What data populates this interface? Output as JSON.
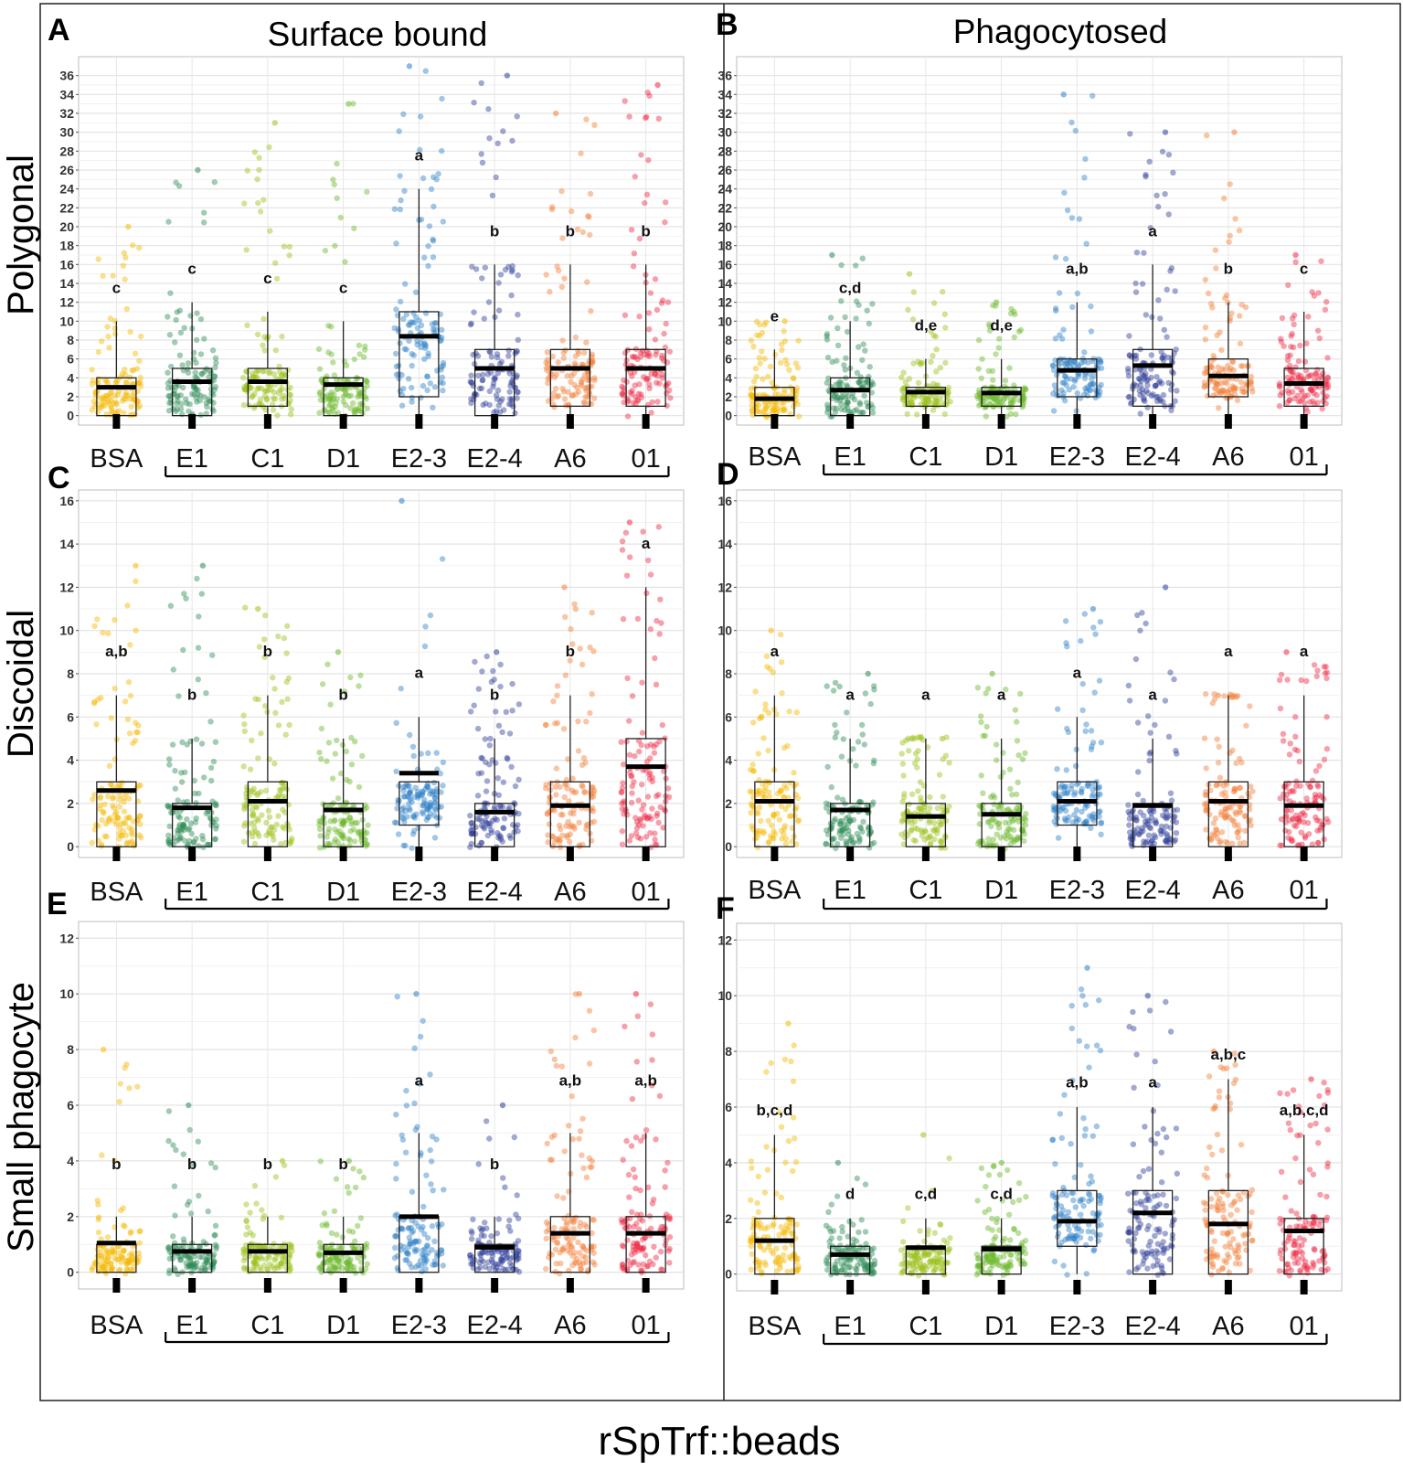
{
  "figure": {
    "col_titles": [
      "Surface bound",
      "Phagocytosed"
    ],
    "row_titles": [
      "Polygonal",
      "Discoidal",
      "Small phagocyte"
    ],
    "xlabel": "rSpTrf::beads"
  },
  "colors": {
    "BSA": "#f5b800",
    "E1": "#2e8b57",
    "C1": "#9cc21a",
    "D1": "#6ab82a",
    "E2-3": "#2f80c8",
    "E2-4": "#2e3f98",
    "A6": "#f57f38",
    "01": "#ee2a45"
  },
  "chart_data": [
    {
      "panel": "A",
      "type": "box",
      "title": "Surface bound",
      "row": "Polygonal",
      "categories": [
        "BSA",
        "E1",
        "C1",
        "D1",
        "E2-3",
        "E2-4",
        "A6",
        "01"
      ],
      "ylim": [
        -1,
        38
      ],
      "yticks": [
        0,
        2,
        4,
        6,
        8,
        10,
        12,
        14,
        16,
        18,
        20,
        22,
        24,
        26,
        28,
        30,
        32,
        34,
        36
      ],
      "q1": [
        0,
        0,
        1,
        0,
        2,
        0,
        1,
        1
      ],
      "median": [
        3,
        3.6,
        3.6,
        3.3,
        8.4,
        5,
        5,
        5
      ],
      "q3": [
        4,
        5,
        5,
        4,
        11,
        7,
        7,
        7
      ],
      "whisker_low": [
        0,
        0,
        0,
        0,
        0,
        0,
        0,
        0
      ],
      "whisker_high": [
        10,
        12,
        11,
        10,
        24,
        16,
        16,
        16
      ],
      "max_point": [
        20,
        26,
        31,
        33,
        37,
        36,
        32,
        35
      ],
      "significance": [
        "c",
        "c",
        "c",
        "c",
        "a",
        "b",
        "b",
        "b"
      ],
      "sig_y": [
        13,
        15,
        14,
        13,
        27,
        19,
        19,
        19
      ]
    },
    {
      "panel": "B",
      "type": "box",
      "title": "Phagocytosed",
      "row": "Polygonal",
      "categories": [
        "BSA",
        "E1",
        "C1",
        "D1",
        "E2-3",
        "E2-4",
        "A6",
        "01"
      ],
      "ylim": [
        -1,
        38
      ],
      "yticks": [
        0,
        2,
        4,
        6,
        8,
        10,
        12,
        14,
        16,
        18,
        20,
        22,
        24,
        26,
        28,
        30,
        32,
        34,
        36
      ],
      "q1": [
        0,
        0,
        1,
        1,
        2,
        1,
        2,
        1
      ],
      "median": [
        1.8,
        2.7,
        2.5,
        2.4,
        4.8,
        5.3,
        4.2,
        3.4
      ],
      "q3": [
        3,
        4,
        3,
        3,
        6,
        7,
        6,
        5
      ],
      "whisker_low": [
        0,
        0,
        0,
        0,
        0,
        0,
        0,
        0
      ],
      "whisker_high": [
        7,
        10,
        6,
        6,
        12,
        16,
        12,
        11
      ],
      "max_point": [
        10,
        17,
        15,
        12,
        34,
        30,
        30,
        17
      ],
      "significance": [
        "e",
        "c,d",
        "d,e",
        "d,e",
        "a,b",
        "a",
        "b",
        "c"
      ],
      "sig_y": [
        10,
        13,
        9,
        9,
        15,
        19,
        15,
        15
      ]
    },
    {
      "panel": "C",
      "type": "box",
      "row": "Discoidal",
      "categories": [
        "BSA",
        "E1",
        "C1",
        "D1",
        "E2-3",
        "E2-4",
        "A6",
        "01"
      ],
      "ylim": [
        -0.5,
        16.5
      ],
      "yticks": [
        0,
        2,
        4,
        6,
        8,
        10,
        12,
        14,
        16
      ],
      "q1": [
        0,
        0,
        0,
        0,
        1,
        0,
        0,
        0
      ],
      "median": [
        2.6,
        1.8,
        2.1,
        1.7,
        3.4,
        1.6,
        1.9,
        3.7
      ],
      "q3": [
        3,
        2,
        3,
        2,
        3,
        2,
        3,
        5
      ],
      "whisker_low": [
        0,
        0,
        0,
        0,
        0,
        0,
        0,
        0
      ],
      "whisker_high": [
        7,
        5,
        7,
        5,
        6,
        5,
        7,
        12
      ],
      "max_point": [
        13,
        13,
        11,
        9,
        16,
        9,
        12,
        15
      ],
      "significance": [
        "a,b",
        "b",
        "b",
        "b",
        "a",
        "b",
        "b",
        "a"
      ],
      "sig_y": [
        8.8,
        6.8,
        8.8,
        6.8,
        7.8,
        6.8,
        8.8,
        13.8
      ]
    },
    {
      "panel": "D",
      "type": "box",
      "row": "Discoidal",
      "categories": [
        "BSA",
        "E1",
        "C1",
        "D1",
        "E2-3",
        "E2-4",
        "A6",
        "01"
      ],
      "ylim": [
        -0.5,
        16.5
      ],
      "yticks": [
        0,
        2,
        4,
        6,
        8,
        10,
        12,
        14,
        16
      ],
      "q1": [
        0,
        0,
        0,
        0,
        1,
        0,
        0,
        0
      ],
      "median": [
        2.1,
        1.7,
        1.4,
        1.5,
        2.1,
        1.9,
        2.1,
        1.9
      ],
      "q3": [
        3,
        2,
        2,
        2,
        3,
        2,
        3,
        3
      ],
      "whisker_low": [
        0,
        0,
        0,
        0,
        0,
        0,
        0,
        0
      ],
      "whisker_high": [
        7,
        5,
        5,
        5,
        6,
        5,
        7,
        7
      ],
      "max_point": [
        10,
        8,
        5,
        8,
        11,
        12,
        7,
        9
      ],
      "significance": [
        "a",
        "a",
        "a",
        "a",
        "a",
        "a",
        "a",
        "a"
      ],
      "sig_y": [
        8.8,
        6.8,
        6.8,
        6.8,
        7.8,
        6.8,
        8.8,
        8.8
      ]
    },
    {
      "panel": "E",
      "type": "box",
      "row": "Small phagocyte",
      "categories": [
        "BSA",
        "E1",
        "C1",
        "D1",
        "E2-3",
        "E2-4",
        "A6",
        "01"
      ],
      "ylim": [
        -0.6,
        12.6
      ],
      "yticks": [
        0,
        2,
        4,
        6,
        8,
        10,
        12
      ],
      "q1": [
        0,
        0,
        0,
        0,
        0,
        0,
        0,
        0
      ],
      "median": [
        1.05,
        0.75,
        0.75,
        0.7,
        2,
        0.9,
        1.4,
        1.4
      ],
      "q3": [
        1,
        1,
        1,
        1,
        2,
        1,
        2,
        2
      ],
      "whisker_low": [
        0,
        0,
        0,
        0,
        0,
        0,
        0,
        0
      ],
      "whisker_high": [
        2,
        2,
        2,
        2,
        5,
        2,
        5,
        5
      ],
      "max_point": [
        8,
        6,
        4,
        4,
        10,
        6,
        10,
        10
      ],
      "significance": [
        "b",
        "b",
        "b",
        "b",
        "a",
        "b",
        "a,b",
        "a,b"
      ],
      "sig_y": [
        3.7,
        3.7,
        3.7,
        3.7,
        6.7,
        3.7,
        6.7,
        6.7
      ]
    },
    {
      "panel": "F",
      "type": "box",
      "row": "Small phagocyte",
      "categories": [
        "BSA",
        "E1",
        "C1",
        "D1",
        "E2-3",
        "E2-4",
        "A6",
        "01"
      ],
      "ylim": [
        -0.6,
        12.6
      ],
      "yticks": [
        0,
        2,
        4,
        6,
        8,
        10,
        12
      ],
      "q1": [
        0,
        0,
        0,
        0,
        1,
        0,
        0,
        0
      ],
      "median": [
        1.2,
        0.7,
        0.95,
        0.9,
        1.9,
        2.2,
        1.8,
        1.55
      ],
      "q3": [
        2,
        1,
        1,
        1,
        3,
        3,
        3,
        2
      ],
      "whisker_low": [
        0,
        0,
        0,
        0,
        0,
        0,
        0,
        0
      ],
      "whisker_high": [
        5,
        2,
        2,
        2,
        6,
        6,
        7,
        5
      ],
      "max_point": [
        9,
        4,
        5,
        4,
        11,
        10,
        8,
        7
      ],
      "significance": [
        "b,c,d",
        "d",
        "c,d",
        "c,d",
        "a,b",
        "a",
        "a,b,c",
        "a,b,c,d"
      ],
      "sig_y": [
        5.7,
        2.7,
        2.7,
        2.7,
        6.7,
        6.7,
        7.7,
        5.7
      ]
    }
  ]
}
